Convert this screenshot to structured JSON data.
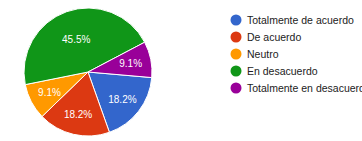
{
  "chart_data": {
    "type": "pie",
    "categories": [
      "Totalmente de acuerdo",
      "De acuerdo",
      "Neutro",
      "En desacuerdo",
      "Totalmente en desacuerdo"
    ],
    "values": [
      18.2,
      18.2,
      9.1,
      45.5,
      9.1
    ],
    "value_labels": [
      "18.2%",
      "18.2%",
      "9.1%",
      "45.5%",
      "9.1%"
    ],
    "colors": [
      "#3366cc",
      "#dc3912",
      "#ff9900",
      "#109618",
      "#990099"
    ],
    "legend": "right",
    "data_labels": true
  }
}
